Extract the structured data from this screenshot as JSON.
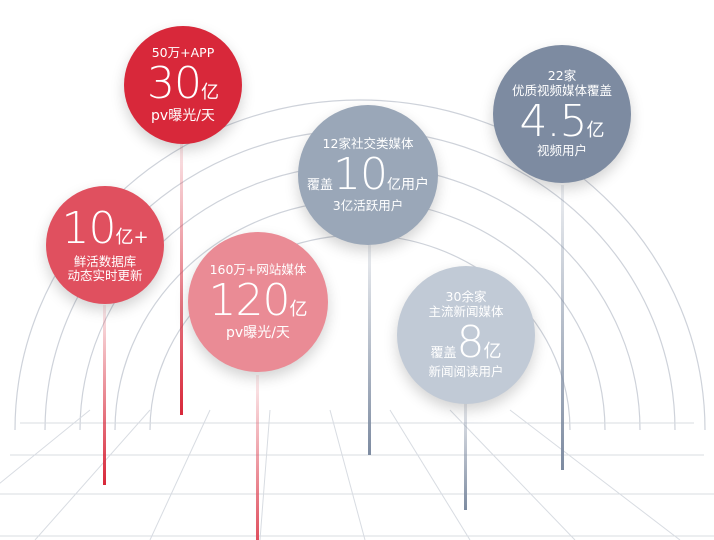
{
  "colors": {
    "red": "#d8283a",
    "red_mid": "#e0505f",
    "red_light": "#ea8b95",
    "slate": "#7d8ba1",
    "slate_light": "#9aa7b8",
    "slate_pale": "#c1cad6"
  },
  "bubbles": {
    "app": {
      "top": "50万+APP",
      "number": "30",
      "unit": "亿",
      "bottom": "pv曝光/天"
    },
    "fresh": {
      "number": "10",
      "unit": "亿+",
      "line1": "鲜活数据库",
      "line2": "动态实时更新"
    },
    "web": {
      "top": "160万+网站媒体",
      "number": "120",
      "unit": "亿",
      "bottom": "pv曝光/天"
    },
    "social": {
      "top": "12家社交类媒体",
      "prefix": "覆盖",
      "number": "10",
      "unit": "亿用户",
      "bottom": "3亿活跃用户"
    },
    "news": {
      "top1": "30余家",
      "top2": "主流新闻媒体",
      "prefix": "覆盖",
      "number": "8",
      "unit": "亿",
      "bottom": "新闻阅读用户"
    },
    "video": {
      "top1": "22家",
      "top2": "优质视频媒体覆盖",
      "number": "4.5",
      "unit": "亿",
      "bottom": "视频用户"
    }
  }
}
